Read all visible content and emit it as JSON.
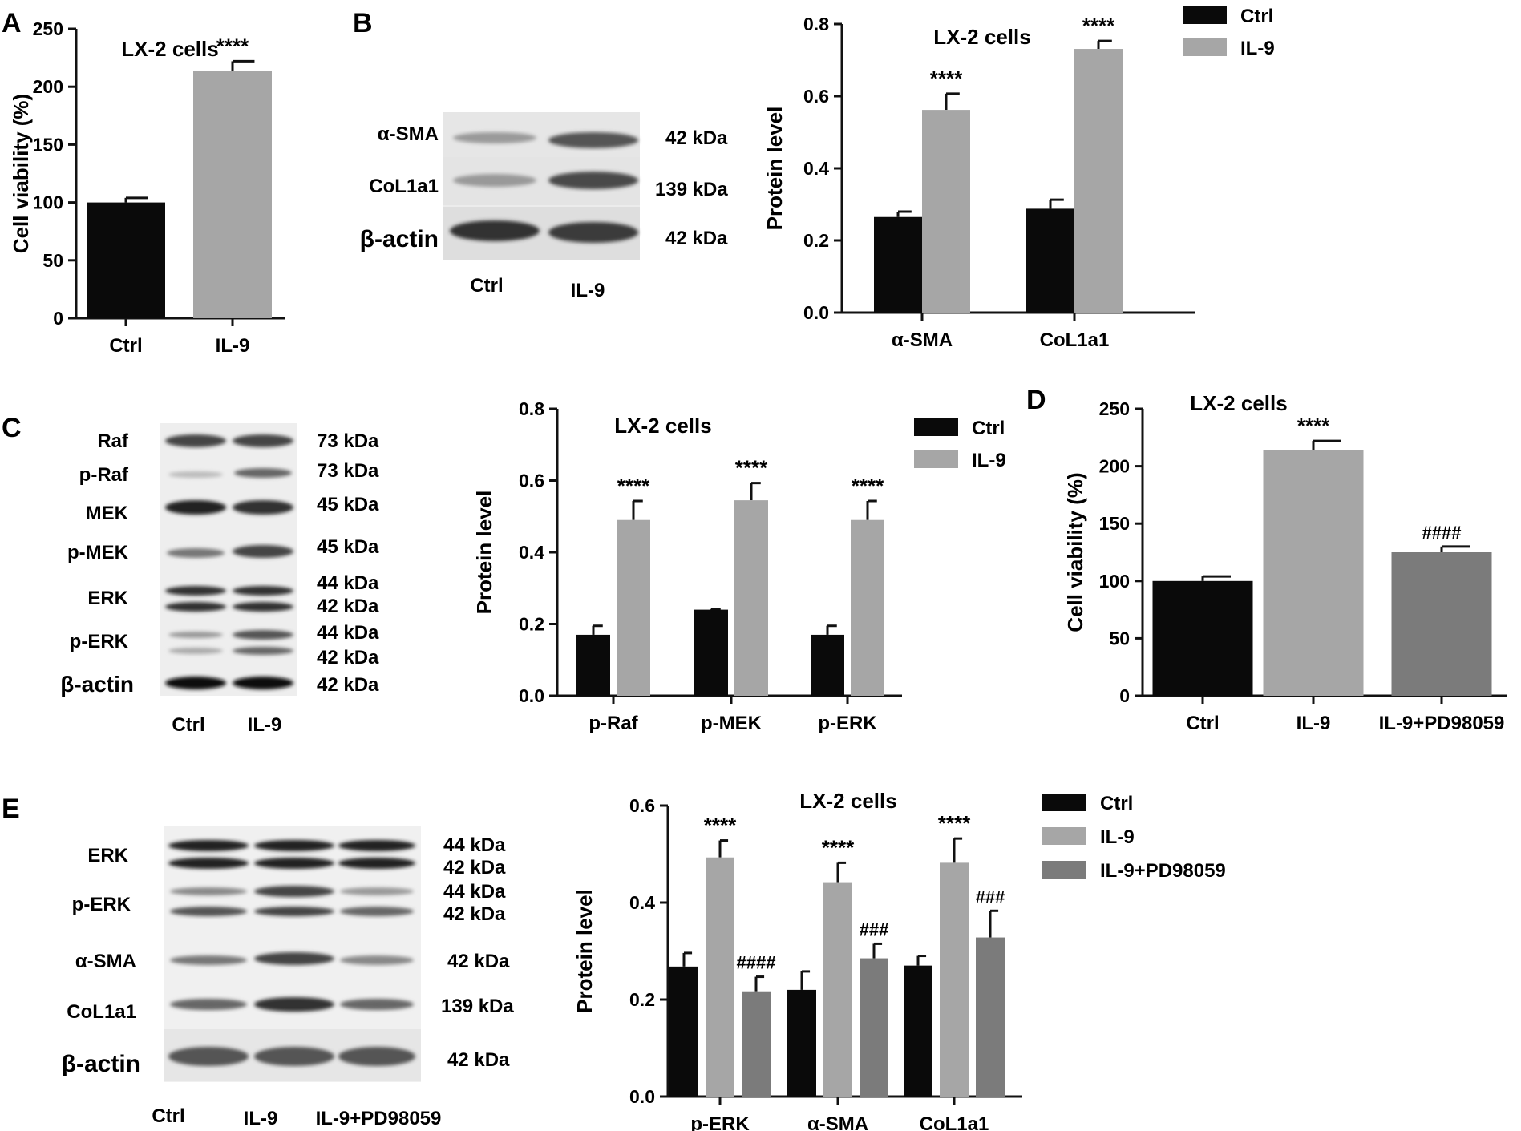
{
  "panels": {
    "A": "A",
    "B": "B",
    "C": "C",
    "D": "D",
    "E": "E"
  },
  "colors": {
    "ctrl": "#0a0a0a",
    "il9": "#a6a6a6",
    "il9_pd": "#7b7b7b"
  },
  "chart_data": [
    {
      "id": "A",
      "type": "bar",
      "title": "LX-2 cells",
      "xlabel": "",
      "ylabel": "Cell viability (%)",
      "ylim": [
        0,
        250
      ],
      "yticks": [
        0,
        50,
        100,
        150,
        200,
        250
      ],
      "yticklabels": [
        "0",
        "50",
        "100",
        "150",
        "200",
        "250"
      ],
      "categories": [
        "Ctrl",
        "IL-9"
      ],
      "bar_colors": [
        "#0a0a0a",
        "#a6a6a6"
      ],
      "values": [
        100,
        214
      ],
      "errors": [
        4,
        8
      ],
      "annotations": [
        "",
        "****"
      ],
      "grid": false
    },
    {
      "id": "B",
      "type": "bar",
      "title": "LX-2 cells",
      "xlabel": "",
      "ylabel": "Protein level",
      "ylim": [
        0,
        0.8
      ],
      "yticks": [
        0,
        0.2,
        0.4,
        0.6,
        0.8
      ],
      "yticklabels": [
        "0.0",
        "0.2",
        "0.4",
        "0.6",
        "0.8"
      ],
      "categories": [
        "α-SMA",
        "CoL1a1"
      ],
      "series": [
        {
          "name": "Ctrl",
          "color": "#0a0a0a",
          "values": [
            0.265,
            0.288
          ],
          "errors": [
            0.015,
            0.025
          ],
          "annotations": [
            "",
            ""
          ]
        },
        {
          "name": "IL-9",
          "color": "#a6a6a6",
          "values": [
            0.562,
            0.731
          ],
          "errors": [
            0.045,
            0.022
          ],
          "annotations": [
            "****",
            "****"
          ]
        }
      ],
      "legend": "top-right",
      "grid": false
    },
    {
      "id": "C",
      "type": "bar",
      "title": "LX-2 cells",
      "xlabel": "",
      "ylabel": "Protein level",
      "ylim": [
        0,
        0.8
      ],
      "yticks": [
        0,
        0.2,
        0.4,
        0.6,
        0.8
      ],
      "yticklabels": [
        "0.0",
        "0.2",
        "0.4",
        "0.6",
        "0.8"
      ],
      "categories": [
        "p-Raf",
        "p-MEK",
        "p-ERK"
      ],
      "series": [
        {
          "name": "Ctrl",
          "color": "#0a0a0a",
          "values": [
            0.17,
            0.24,
            0.17
          ],
          "errors": [
            0.025,
            0.002,
            0.025
          ],
          "annotations": [
            "",
            "",
            ""
          ]
        },
        {
          "name": "IL-9",
          "color": "#a6a6a6",
          "values": [
            0.49,
            0.545,
            0.49
          ],
          "errors": [
            0.053,
            0.048,
            0.053
          ],
          "annotations": [
            "****",
            "****",
            "****"
          ]
        }
      ],
      "legend": "top-right",
      "grid": false
    },
    {
      "id": "D",
      "type": "bar",
      "title": "LX-2 cells",
      "xlabel": "",
      "ylabel": "Cell viability (%)",
      "ylim": [
        0,
        250
      ],
      "yticks": [
        0,
        50,
        100,
        150,
        200,
        250
      ],
      "yticklabels": [
        "0",
        "50",
        "100",
        "150",
        "200",
        "250"
      ],
      "categories": [
        "Ctrl",
        "IL-9",
        "IL-9+PD98059"
      ],
      "bar_colors": [
        "#0a0a0a",
        "#a6a6a6",
        "#7b7b7b"
      ],
      "values": [
        100,
        214,
        125
      ],
      "errors": [
        4,
        8,
        5
      ],
      "annotations": [
        "",
        "****",
        "####"
      ],
      "grid": false
    },
    {
      "id": "E",
      "type": "bar",
      "title": "LX-2 cells",
      "xlabel": "",
      "ylabel": "Protein level",
      "ylim": [
        0,
        0.6
      ],
      "yticks": [
        0,
        0.2,
        0.4,
        0.6
      ],
      "yticklabels": [
        "0.0",
        "0.2",
        "0.4",
        "0.6"
      ],
      "categories": [
        "p-ERK",
        "α-SMA",
        "CoL1a1"
      ],
      "series": [
        {
          "name": "Ctrl",
          "color": "#0a0a0a",
          "values": [
            0.268,
            0.22,
            0.27
          ],
          "errors": [
            0.028,
            0.038,
            0.02
          ],
          "annotations": [
            "",
            "",
            ""
          ]
        },
        {
          "name": "IL-9",
          "color": "#a6a6a6",
          "values": [
            0.493,
            0.442,
            0.482
          ],
          "errors": [
            0.035,
            0.04,
            0.05
          ],
          "annotations": [
            "****",
            "****",
            "****"
          ]
        },
        {
          "name": "IL-9+PD98059",
          "color": "#7b7b7b",
          "values": [
            0.217,
            0.285,
            0.328
          ],
          "errors": [
            0.03,
            0.03,
            0.055
          ],
          "annotations": [
            "####",
            "###",
            "###"
          ]
        }
      ],
      "legend": "top-right",
      "grid": false
    }
  ],
  "blots": {
    "B": {
      "proteins": [
        "α-SMA",
        "CoL1a1",
        "β-actin"
      ],
      "sizes": [
        "42 kDa",
        "139 kDa",
        "42 kDa"
      ],
      "lanes": [
        "Ctrl",
        "IL-9"
      ]
    },
    "C": {
      "proteins": [
        "Raf",
        "p-Raf",
        "MEK",
        "p-MEK",
        "ERK",
        "p-ERK",
        "β-actin"
      ],
      "sizes": [
        "73 kDa",
        "73 kDa",
        "45 kDa",
        "45 kDa",
        "44 kDa",
        "42 kDa",
        "44 kDa",
        "42 kDa",
        "42 kDa"
      ],
      "lanes": [
        "Ctrl",
        "IL-9"
      ]
    },
    "E": {
      "proteins": [
        "ERK",
        "p-ERK",
        "α-SMA",
        "CoL1a1",
        "β-actin"
      ],
      "sizes": [
        "44 kDa",
        "42 kDa",
        "44 kDa",
        "42 kDa",
        "42 kDa",
        "139 kDa",
        "42 kDa"
      ],
      "lanes": [
        "Ctrl",
        "IL-9",
        "IL-9+PD98059"
      ]
    }
  }
}
